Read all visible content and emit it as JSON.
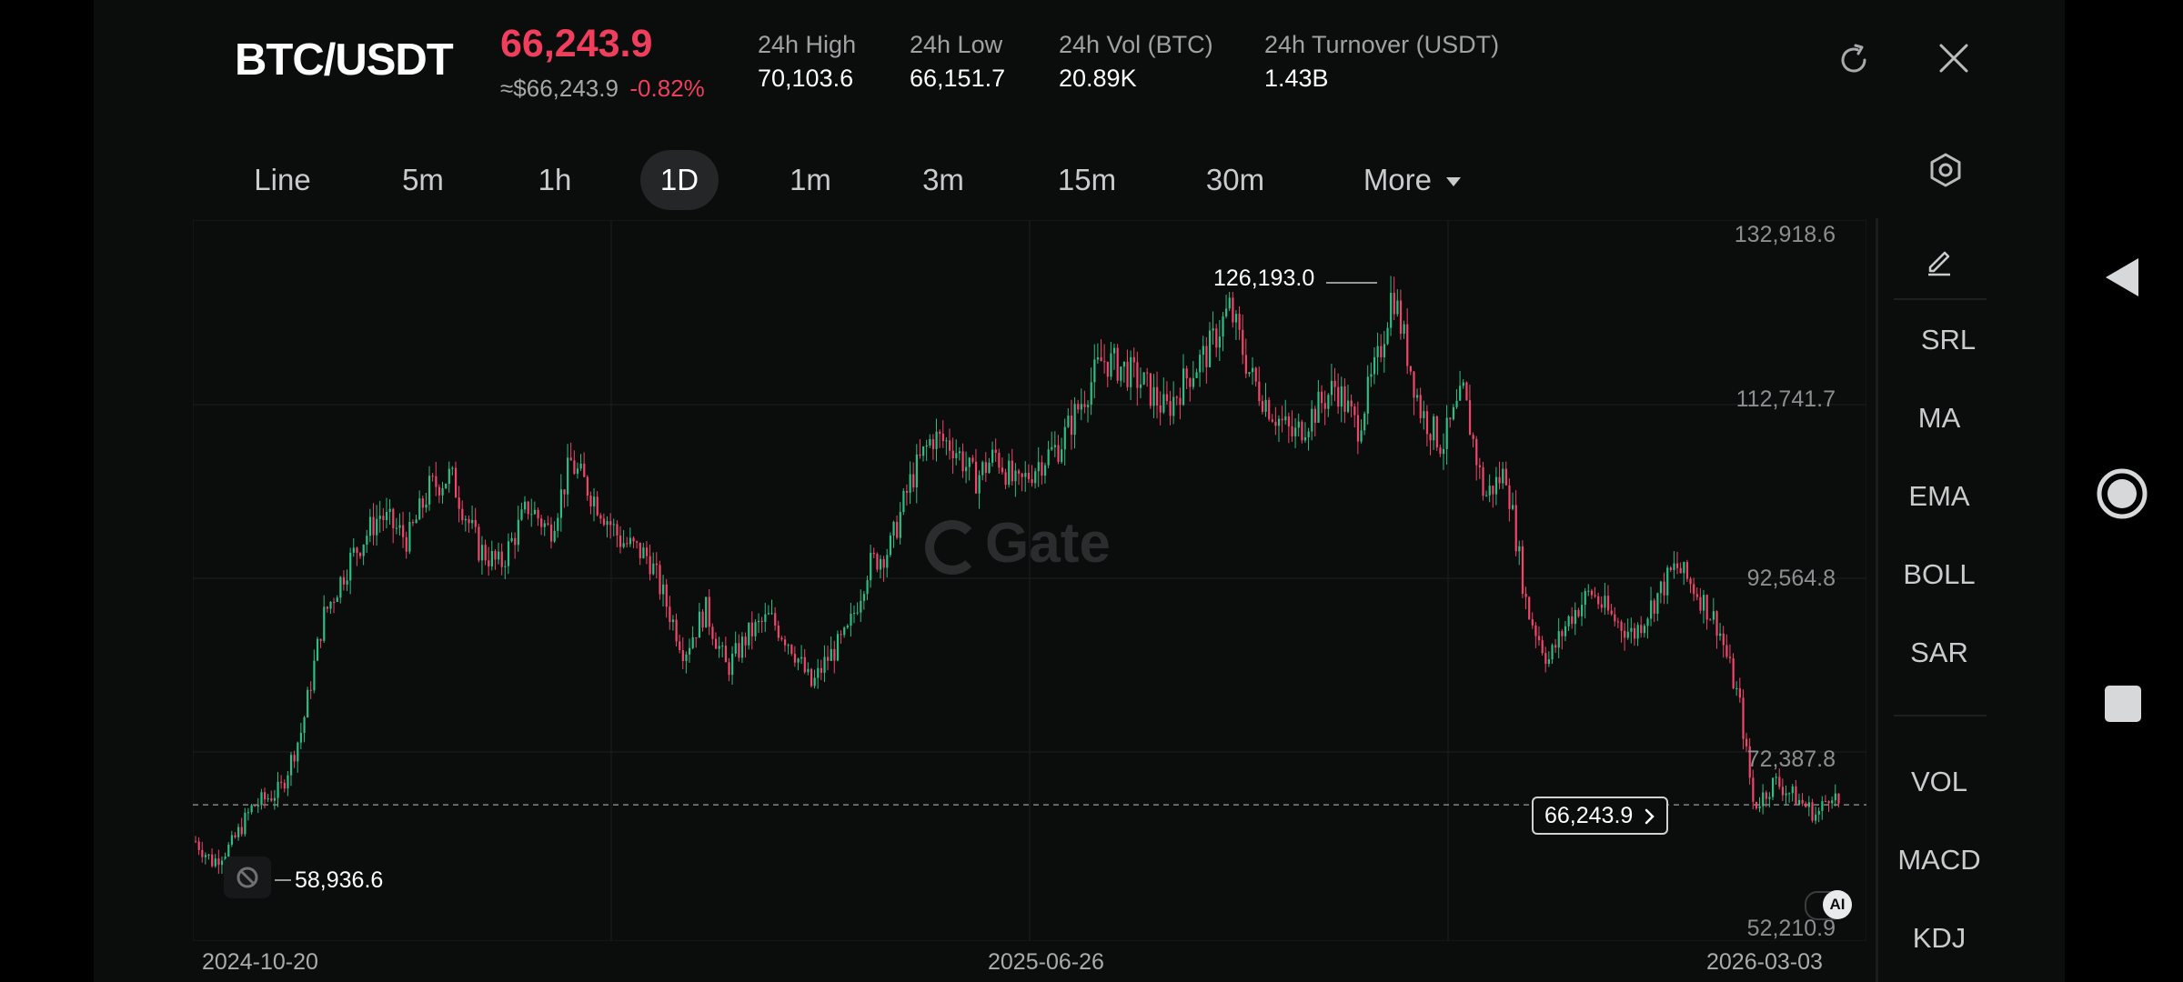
{
  "header": {
    "pair": "BTC/USDT",
    "last_price": "66,243.9",
    "usd_equiv": "≈$66,243.9",
    "change": "-0.82%",
    "stats": [
      {
        "label": "24h  High",
        "value": "70,103.6"
      },
      {
        "label": "24h  Low",
        "value": "66,151.7"
      },
      {
        "label": "24h  Vol (BTC)",
        "value": "20.89K"
      },
      {
        "label": "24h  Turnover (USDT)",
        "value": "1.43B"
      }
    ],
    "refresh_icon": "refresh-icon",
    "close_icon": "close-icon"
  },
  "intervals": {
    "items": [
      "Line",
      "5m",
      "1h",
      "1D",
      "1m",
      "3m",
      "15m",
      "30m"
    ],
    "active": "1D",
    "more_label": "More",
    "settings_icon": "hexagon-settings-icon"
  },
  "chart_data": {
    "type": "candlestick",
    "pair": "BTC/USDT",
    "x_labels": [
      "2024-10-20",
      "2025-06-26",
      "2026-03-03"
    ],
    "y_ticks": [
      "132,918.6",
      "112,741.7",
      "92,564.8",
      "72,387.8",
      "52,210.9"
    ],
    "ylim": [
      52210.9,
      132918.6
    ],
    "high_marker": "126,193.0",
    "low_marker": "58,936.6",
    "current_price_tag": "66,243.9",
    "watermark": "Gate",
    "ai_badge": "AI",
    "up_color": "#2ebd85",
    "down_color": "#f0466b",
    "grid": true,
    "path": [
      [
        0,
        62000
      ],
      [
        0.012,
        59600
      ],
      [
        0.025,
        61500
      ],
      [
        0.04,
        66000
      ],
      [
        0.06,
        68000
      ],
      [
        0.075,
        75000
      ],
      [
        0.09,
        88000
      ],
      [
        0.11,
        95000
      ],
      [
        0.13,
        100000
      ],
      [
        0.15,
        97000
      ],
      [
        0.165,
        103000
      ],
      [
        0.18,
        104500
      ],
      [
        0.2,
        96000
      ],
      [
        0.215,
        94000
      ],
      [
        0.235,
        101000
      ],
      [
        0.25,
        98000
      ],
      [
        0.265,
        106000
      ],
      [
        0.285,
        101000
      ],
      [
        0.3,
        97000
      ],
      [
        0.32,
        95000
      ],
      [
        0.345,
        84000
      ],
      [
        0.36,
        89000
      ],
      [
        0.375,
        82000
      ],
      [
        0.39,
        86000
      ],
      [
        0.405,
        88000
      ],
      [
        0.42,
        85000
      ],
      [
        0.435,
        80000
      ],
      [
        0.445,
        83000
      ],
      [
        0.46,
        86000
      ],
      [
        0.475,
        94000
      ],
      [
        0.49,
        96000
      ],
      [
        0.505,
        104000
      ],
      [
        0.52,
        109000
      ],
      [
        0.535,
        108000
      ],
      [
        0.55,
        104000
      ],
      [
        0.565,
        107000
      ],
      [
        0.58,
        103000
      ],
      [
        0.595,
        106000
      ],
      [
        0.61,
        108000
      ],
      [
        0.625,
        113000
      ],
      [
        0.64,
        118000
      ],
      [
        0.655,
        117000
      ],
      [
        0.67,
        115000
      ],
      [
        0.685,
        112000
      ],
      [
        0.7,
        116000
      ],
      [
        0.715,
        119000
      ],
      [
        0.73,
        124000
      ],
      [
        0.745,
        116000
      ],
      [
        0.76,
        112000
      ],
      [
        0.775,
        109000
      ],
      [
        0.79,
        112000
      ],
      [
        0.805,
        115000
      ],
      [
        0.82,
        110000
      ],
      [
        0.835,
        118000
      ],
      [
        0.845,
        126193
      ],
      [
        0.855,
        119000
      ],
      [
        0.865,
        112000
      ],
      [
        0.88,
        108000
      ],
      [
        0.895,
        114000
      ],
      [
        0.91,
        102000
      ],
      [
        0.925,
        105000
      ],
      [
        0.94,
        89000
      ],
      [
        0.955,
        83000
      ],
      [
        0.97,
        88000
      ],
      [
        0.985,
        91000
      ],
      [
        1.0,
        88000
      ],
      [
        1.015,
        86000
      ],
      [
        1.03,
        90000
      ],
      [
        1.045,
        94000
      ],
      [
        1.06,
        91000
      ],
      [
        1.075,
        87000
      ],
      [
        1.09,
        78000
      ],
      [
        1.1,
        66000
      ],
      [
        1.115,
        69000
      ],
      [
        1.13,
        67000
      ],
      [
        1.145,
        65000
      ],
      [
        1.155,
        68000
      ],
      [
        1.16,
        66243.9
      ]
    ]
  },
  "side_tools": {
    "draw_icon": "pencil-icon",
    "overlays": [
      "SRL",
      "MA",
      "EMA",
      "BOLL",
      "SAR"
    ],
    "indicators": [
      "VOL",
      "MACD",
      "KDJ"
    ]
  },
  "nav": {
    "back_icon": "back-triangle-icon",
    "home_icon": "home-circle-icon",
    "recents_icon": "recents-square-icon"
  }
}
